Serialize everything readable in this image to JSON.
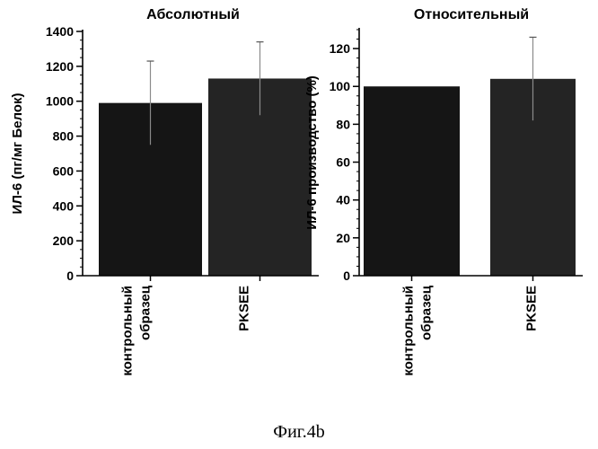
{
  "caption": "Фиг.4b",
  "chart_data": [
    {
      "type": "bar",
      "title": "Абсолютный",
      "ylabel": "ИЛ-6 (пг/мг Белок)",
      "xlabel": "",
      "categories": [
        "контрольный образец",
        "PKSEE"
      ],
      "category_lines": [
        [
          "контрольный",
          "образец"
        ],
        [
          "PKSEE"
        ]
      ],
      "values": [
        990,
        1130
      ],
      "errors": [
        240,
        210
      ],
      "ylim": [
        0,
        1400
      ],
      "yticks": [
        0,
        200,
        400,
        600,
        800,
        1000,
        1200,
        1400
      ],
      "ytick_labels": [
        "0",
        "200",
        "400",
        "600",
        "800",
        "1000",
        "1200",
        "1400"
      ],
      "minor_step": 50,
      "bar_colors": [
        "#151515",
        "#242424"
      ],
      "grid": false,
      "legend": "none"
    },
    {
      "type": "bar",
      "title": "Относительный",
      "ylabel": "ИЛ-6 производство (%)",
      "xlabel": "",
      "categories": [
        "контрольный образец",
        "PKSEE"
      ],
      "category_lines": [
        [
          "контрольный",
          "образец"
        ],
        [
          "PKSEE"
        ]
      ],
      "values": [
        100,
        104
      ],
      "errors": [
        0,
        22
      ],
      "ylim": [
        0,
        130
      ],
      "yticks": [
        0,
        20,
        40,
        60,
        80,
        100,
        120
      ],
      "ytick_labels": [
        "0",
        "20",
        "40",
        "60",
        "80",
        "100",
        "120"
      ],
      "minor_step": 5,
      "bar_colors": [
        "#151515",
        "#242424"
      ],
      "grid": false,
      "legend": "none"
    }
  ]
}
